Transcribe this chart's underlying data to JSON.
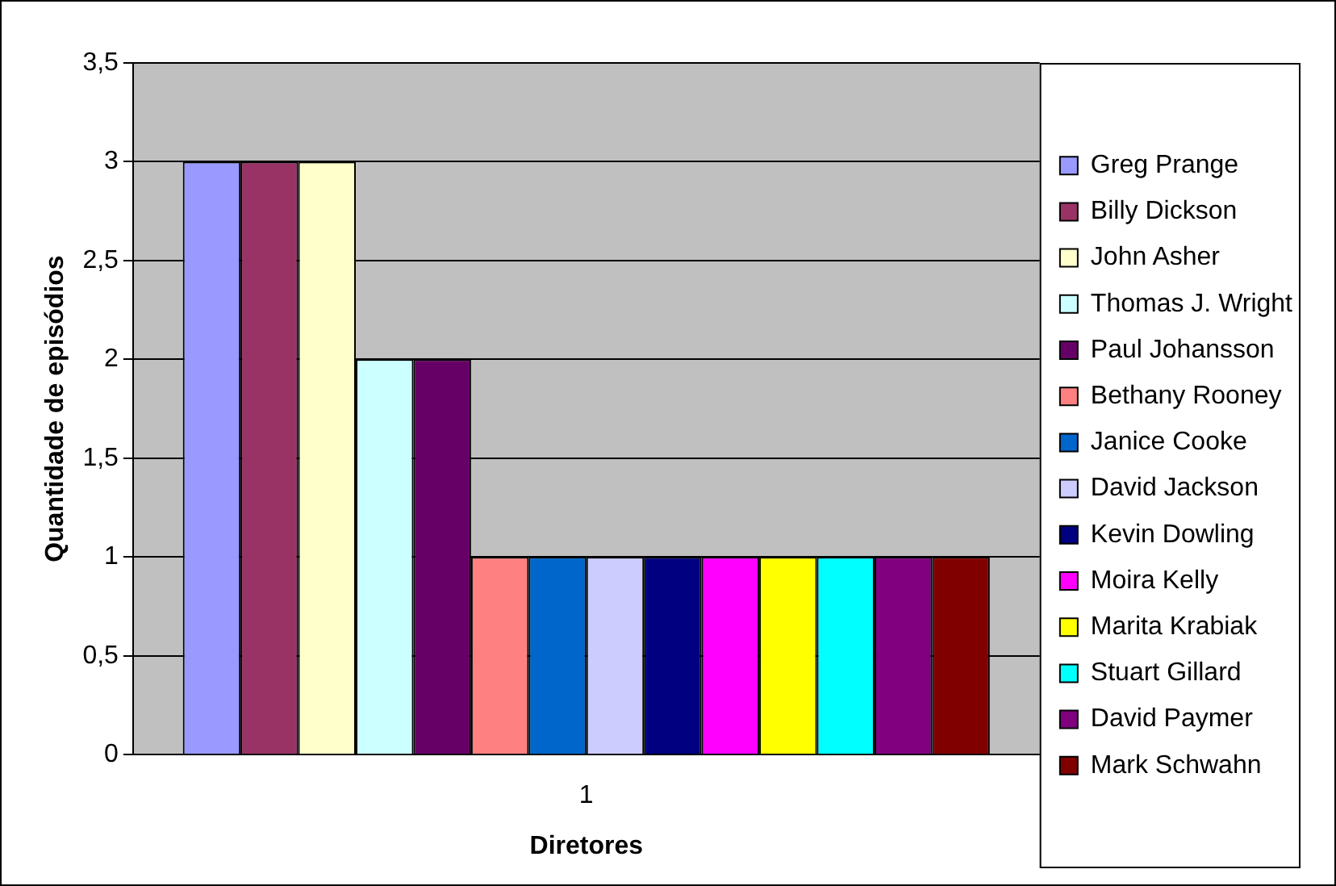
{
  "chart_data": {
    "type": "bar",
    "categories": [
      "1"
    ],
    "xlabel": "Diretores",
    "ylabel": "Quantidade de episódios",
    "series": [
      {
        "name": "Greg Prange",
        "color": "#9999ff",
        "values": [
          3
        ]
      },
      {
        "name": "Billy Dickson",
        "color": "#993366",
        "values": [
          3
        ]
      },
      {
        "name": "John Asher",
        "color": "#ffffcc",
        "values": [
          3
        ]
      },
      {
        "name": "Thomas J. Wright",
        "color": "#ccffff",
        "values": [
          2
        ]
      },
      {
        "name": "Paul Johansson",
        "color": "#660066",
        "values": [
          2
        ]
      },
      {
        "name": "Bethany Rooney",
        "color": "#ff8080",
        "values": [
          1
        ]
      },
      {
        "name": "Janice Cooke",
        "color": "#0066cc",
        "values": [
          1
        ]
      },
      {
        "name": "David Jackson",
        "color": "#ccccff",
        "values": [
          1
        ]
      },
      {
        "name": "Kevin Dowling",
        "color": "#000080",
        "values": [
          1
        ]
      },
      {
        "name": "Moira Kelly",
        "color": "#ff00ff",
        "values": [
          1
        ]
      },
      {
        "name": "Marita Krabiak",
        "color": "#ffff00",
        "values": [
          1
        ]
      },
      {
        "name": "Stuart Gillard",
        "color": "#00ffff",
        "values": [
          1
        ]
      },
      {
        "name": "David Paymer",
        "color": "#800080",
        "values": [
          1
        ]
      },
      {
        "name": "Mark Schwahn",
        "color": "#800000",
        "values": [
          1
        ]
      }
    ],
    "ylim": [
      0,
      3.5
    ],
    "yticks": [
      0,
      {
        "value": 0.5,
        "label": "0,5"
      },
      1,
      {
        "value": 1.5,
        "label": "1,5"
      },
      2,
      {
        "value": 2.5,
        "label": "2,5"
      },
      3,
      {
        "value": 3.5,
        "label": "3,5"
      }
    ],
    "grid": "y",
    "legend": "right"
  }
}
